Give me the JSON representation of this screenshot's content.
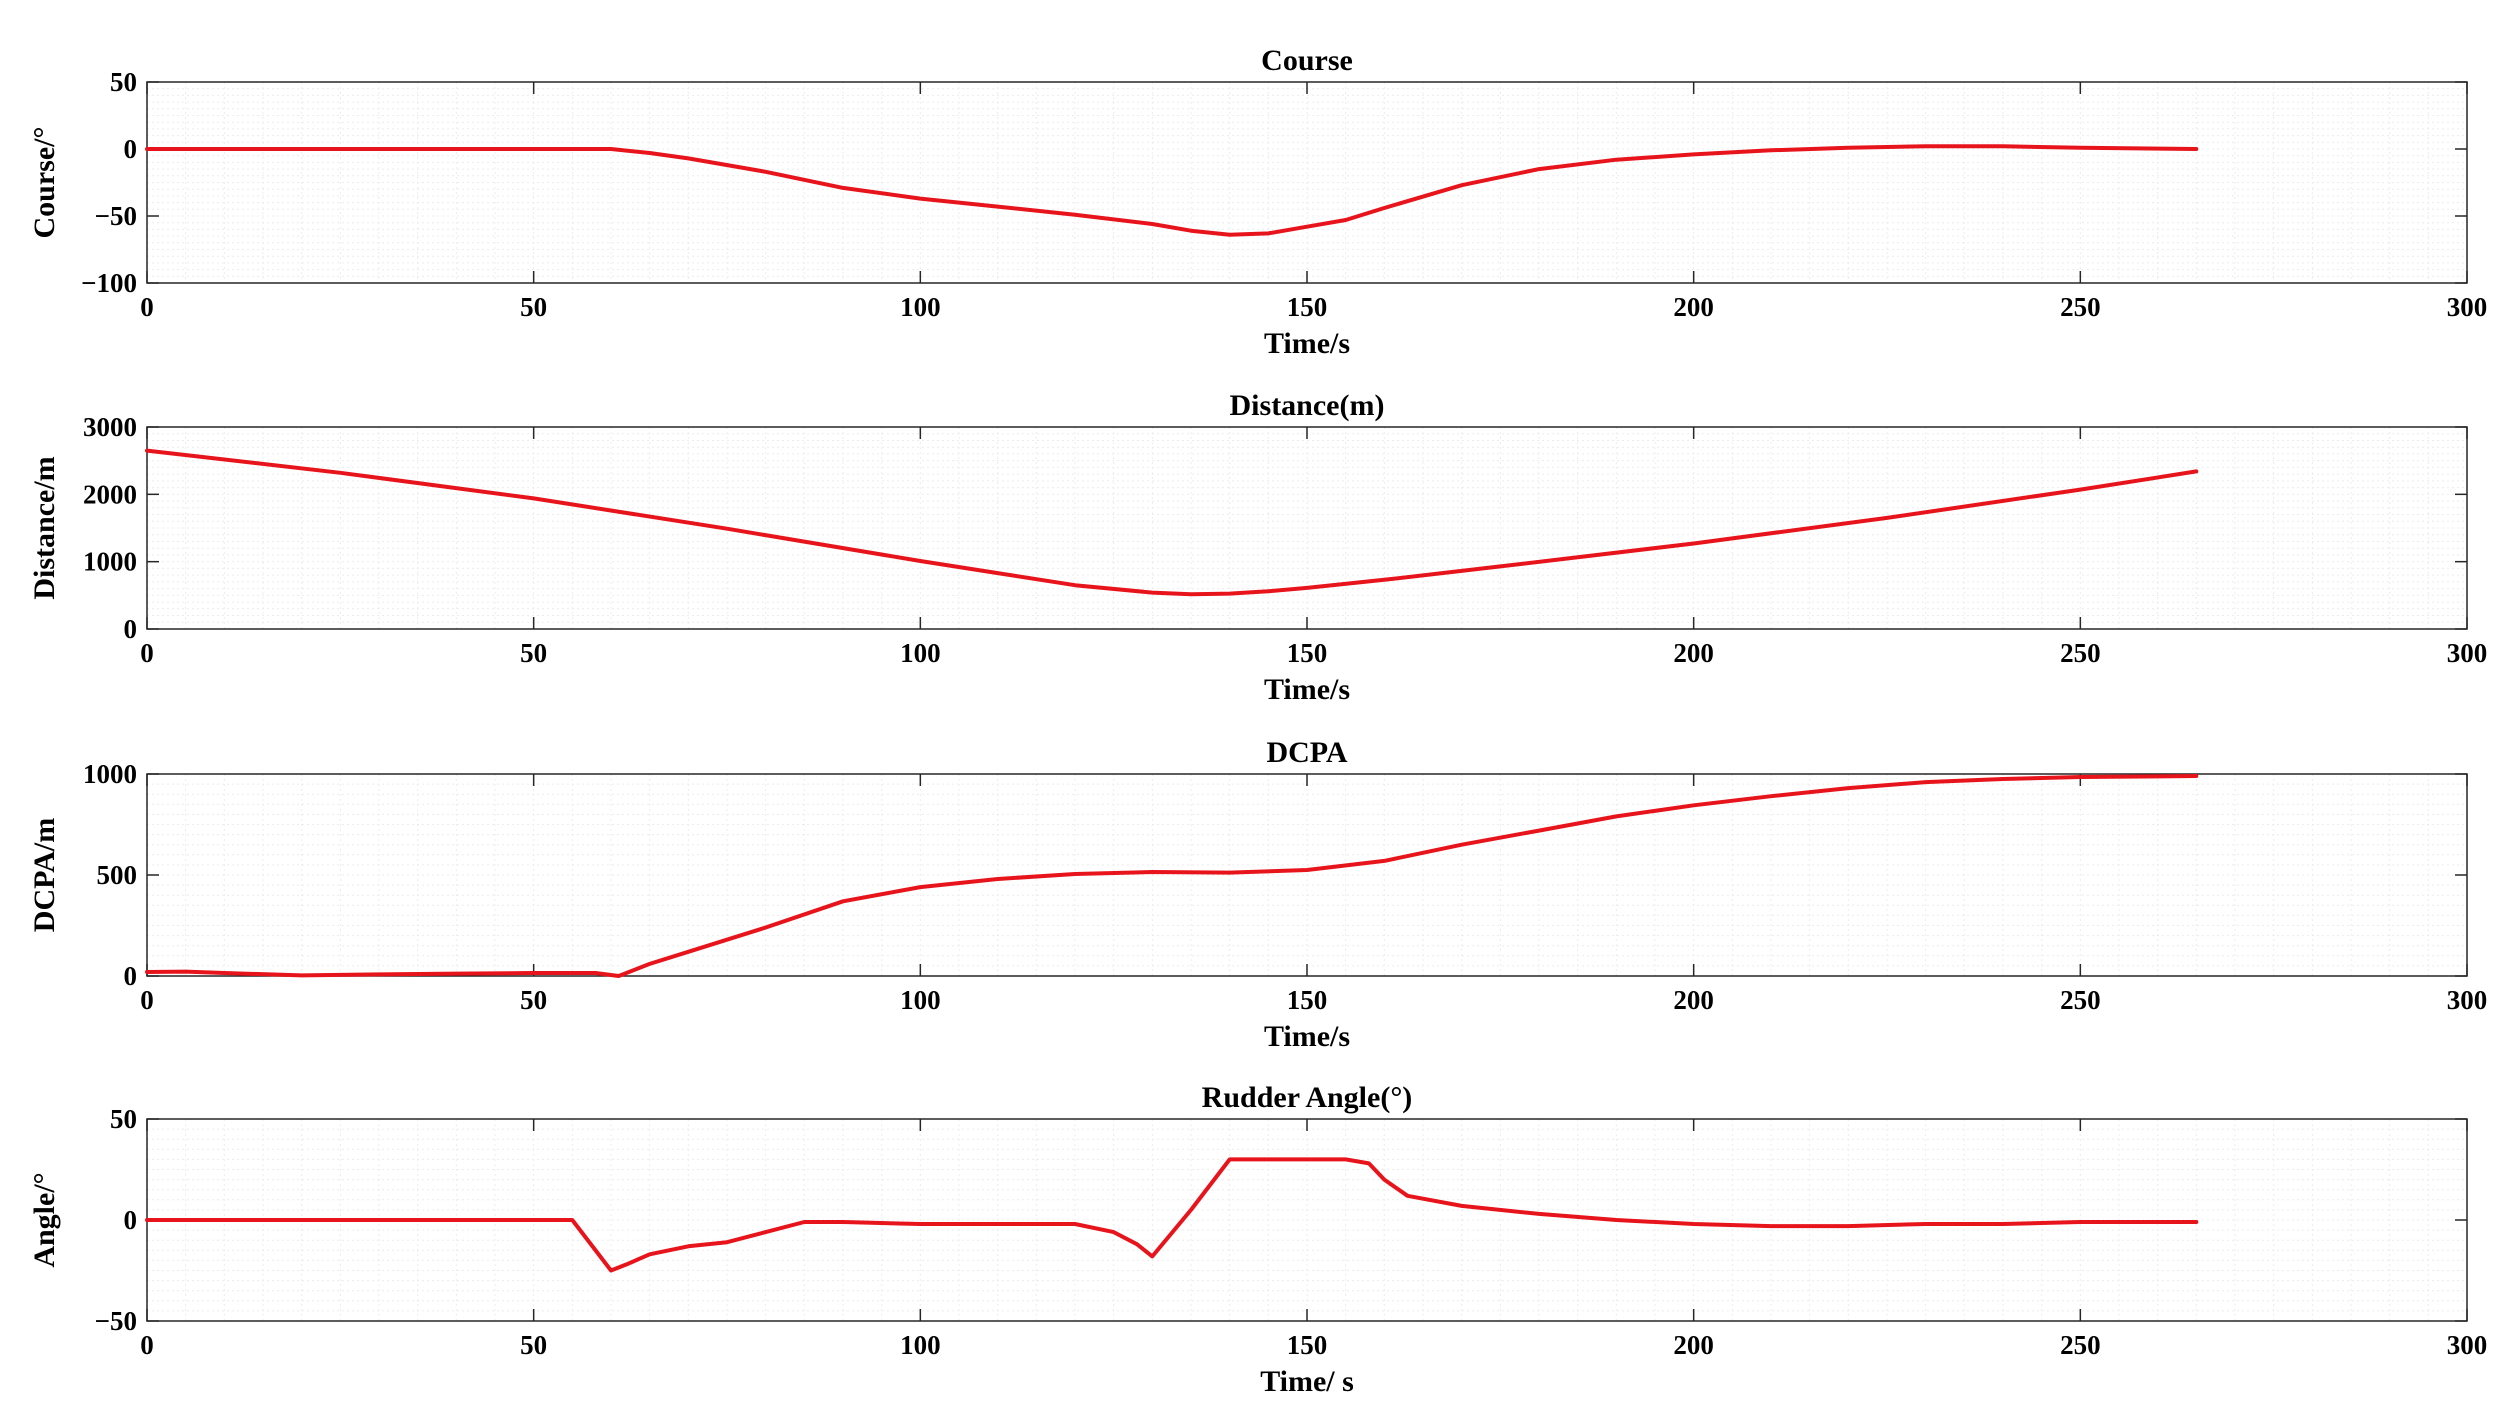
{
  "chart_data": [
    {
      "type": "line",
      "title": "Course",
      "xlabel": "Time/s",
      "ylabel": "Course/°",
      "xlim": [
        0,
        300
      ],
      "ylim": [
        -100,
        50
      ],
      "xticks": [
        0,
        50,
        100,
        150,
        200,
        250,
        300
      ],
      "yticks": [
        -100,
        -50,
        0,
        50
      ],
      "grid": true,
      "color": "#e8141c",
      "x": [
        0,
        55,
        60,
        65,
        70,
        80,
        90,
        100,
        110,
        120,
        130,
        135,
        140,
        145,
        150,
        155,
        160,
        170,
        180,
        190,
        200,
        210,
        220,
        230,
        240,
        250,
        265
      ],
      "y": [
        0,
        0,
        0,
        -3,
        -7,
        -17,
        -29,
        -37,
        -43,
        -49,
        -56,
        -61,
        -64,
        -63,
        -58,
        -53,
        -44,
        -27,
        -15,
        -8,
        -4,
        -1,
        1,
        2,
        2,
        1,
        0
      ]
    },
    {
      "type": "line",
      "title": "Distance(m)",
      "xlabel": "Time/s",
      "ylabel": "Distance/m",
      "xlim": [
        0,
        300
      ],
      "ylim": [
        0,
        3000
      ],
      "xticks": [
        0,
        50,
        100,
        150,
        200,
        250,
        300
      ],
      "yticks": [
        0,
        1000,
        2000,
        3000
      ],
      "grid": true,
      "color": "#e8141c",
      "x": [
        0,
        25,
        50,
        75,
        100,
        110,
        120,
        130,
        135,
        140,
        145,
        150,
        160,
        175,
        200,
        225,
        250,
        265
      ],
      "y": [
        2650,
        2320,
        1940,
        1490,
        1010,
        830,
        650,
        540,
        515,
        525,
        560,
        610,
        730,
        930,
        1270,
        1650,
        2070,
        2340
      ]
    },
    {
      "type": "line",
      "title": "DCPA",
      "xlabel": "Time/s",
      "ylabel": "DCPA/m",
      "xlim": [
        0,
        300
      ],
      "ylim": [
        0,
        1000
      ],
      "xticks": [
        0,
        50,
        100,
        150,
        200,
        250,
        300
      ],
      "yticks": [
        0,
        500,
        1000
      ],
      "grid": true,
      "color": "#e8141c",
      "x": [
        0,
        5,
        10,
        20,
        30,
        40,
        50,
        58,
        61,
        65,
        70,
        80,
        90,
        100,
        110,
        120,
        130,
        140,
        150,
        160,
        170,
        180,
        190,
        200,
        210,
        220,
        230,
        240,
        250,
        265
      ],
      "y": [
        20,
        22,
        15,
        3,
        8,
        12,
        15,
        15,
        0,
        60,
        120,
        240,
        370,
        440,
        480,
        505,
        515,
        512,
        525,
        570,
        650,
        720,
        790,
        845,
        890,
        930,
        960,
        975,
        985,
        990
      ]
    },
    {
      "type": "line",
      "title": "Rudder Angle(°)",
      "xlabel": "Time/ s",
      "ylabel": "Angle/°",
      "xlim": [
        0,
        300
      ],
      "ylim": [
        -50,
        50
      ],
      "xticks": [
        0,
        50,
        100,
        150,
        200,
        250,
        300
      ],
      "yticks": [
        -50,
        0,
        50
      ],
      "grid": true,
      "color": "#e8141c",
      "x": [
        0,
        55,
        60,
        62,
        65,
        70,
        75,
        80,
        85,
        90,
        100,
        110,
        120,
        125,
        128,
        130,
        135,
        140,
        145,
        150,
        155,
        158,
        160,
        163,
        170,
        180,
        190,
        200,
        210,
        220,
        230,
        240,
        250,
        265
      ],
      "y": [
        0,
        0,
        -25,
        -22,
        -17,
        -13,
        -11,
        -6,
        -1,
        -1,
        -2,
        -2,
        -2,
        -6,
        -12,
        -18,
        5,
        30,
        30,
        30,
        30,
        28,
        20,
        12,
        7,
        3,
        0,
        -2,
        -3,
        -3,
        -2,
        -2,
        -1,
        -1
      ]
    }
  ]
}
